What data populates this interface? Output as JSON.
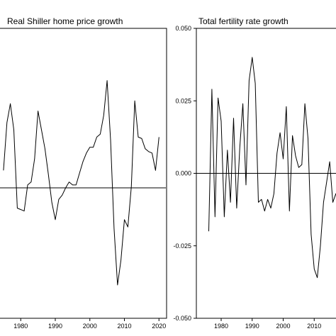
{
  "chart_data": [
    {
      "type": "line",
      "title": "Real Shiller home price growth",
      "xlabel": "",
      "ylabel": "",
      "xlim": [
        1974,
        2022
      ],
      "xticks": [
        1980,
        1990,
        2000,
        2010,
        2020
      ],
      "x_tick_labels": [
        "1980",
        "1990",
        "2000",
        "2010",
        "2020"
      ],
      "ylim": [
        -0.09,
        0.11
      ],
      "yticks": [],
      "hline": 0,
      "grid": false,
      "series": [
        {
          "x": [
            1975,
            1976,
            1977,
            1978,
            1979,
            1980,
            1981,
            1982,
            1983,
            1984,
            1985,
            1986,
            1987,
            1988,
            1989,
            1990,
            1991,
            1992,
            1993,
            1994,
            1995,
            1996,
            1997,
            1998,
            1999,
            2000,
            2001,
            2002,
            2003,
            2004,
            2005,
            2006,
            2007,
            2008,
            2009,
            2010,
            2011,
            2012,
            2013,
            2014,
            2015,
            2016,
            2017,
            2018,
            2019,
            2020
          ],
          "y": [
            0.012,
            0.045,
            0.058,
            0.04,
            -0.014,
            -0.015,
            -0.016,
            0.002,
            0.004,
            0.02,
            0.053,
            0.04,
            0.027,
            0.009,
            -0.01,
            -0.022,
            -0.008,
            -0.005,
            0.0,
            0.004,
            0.002,
            0.002,
            0.01,
            0.018,
            0.024,
            0.028,
            0.028,
            0.035,
            0.037,
            0.05,
            0.074,
            0.033,
            -0.028,
            -0.067,
            -0.05,
            -0.022,
            -0.027,
            0.001,
            0.06,
            0.035,
            0.034,
            0.027,
            0.025,
            0.024,
            0.012,
            0.035
          ]
        }
      ]
    },
    {
      "type": "line",
      "title": "Total fertility rate growth",
      "xlabel": "",
      "ylabel": "",
      "xlim": [
        1972,
        2020
      ],
      "xticks": [
        1980,
        1990,
        2000,
        2010
      ],
      "x_tick_labels": [
        "1980",
        "1990",
        "2000",
        "2010"
      ],
      "ylim": [
        -0.05,
        0.05
      ],
      "yticks": [
        0.05,
        0.025,
        0.0,
        -0.025,
        -0.05
      ],
      "y_tick_labels": [
        "0.050",
        "0.025",
        "0.000",
        "-0.025",
        "-0.050"
      ],
      "hline": 0,
      "grid": false,
      "series": [
        {
          "x": [
            1976,
            1977,
            1978,
            1979,
            1980,
            1981,
            1982,
            1983,
            1984,
            1985,
            1986,
            1987,
            1988,
            1989,
            1990,
            1991,
            1992,
            1993,
            1994,
            1995,
            1996,
            1997,
            1998,
            1999,
            2000,
            2001,
            2002,
            2003,
            2004,
            2005,
            2006,
            2007,
            2008,
            2009,
            2010,
            2011,
            2012,
            2013,
            2014,
            2015,
            2016,
            2017,
            2018
          ],
          "y": [
            -0.02,
            0.029,
            -0.015,
            0.026,
            0.018,
            -0.015,
            0.008,
            -0.01,
            0.019,
            -0.012,
            0.009,
            0.024,
            -0.004,
            0.032,
            0.04,
            0.031,
            -0.01,
            -0.009,
            -0.013,
            -0.009,
            -0.012,
            -0.007,
            0.007,
            0.014,
            0.005,
            0.023,
            -0.013,
            0.013,
            0.006,
            0.002,
            0.003,
            0.024,
            0.012,
            -0.021,
            -0.033,
            -0.036,
            -0.025,
            -0.01,
            -0.003,
            0.004,
            -0.01,
            -0.007,
            -0.012
          ]
        }
      ]
    }
  ]
}
